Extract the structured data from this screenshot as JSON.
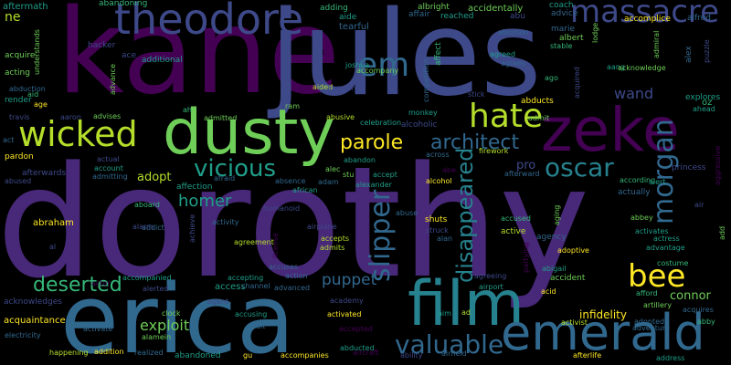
{
  "colors": {
    "background": "#000000",
    "palette": [
      "#440154",
      "#482878",
      "#3e4989",
      "#31688e",
      "#26828e",
      "#1f9e89",
      "#35b779",
      "#6ece58",
      "#b5de2b",
      "#fde725"
    ]
  },
  "words": [
    {
      "text": "dorothy",
      "color": "#482878",
      "rot": 0
    },
    {
      "text": "kane",
      "color": "#440154",
      "rot": 0
    },
    {
      "text": "jules",
      "color": "#3e4989",
      "rot": 0
    },
    {
      "text": "erica",
      "color": "#31688e",
      "rot": 0
    },
    {
      "text": "dusty",
      "color": "#6ece58",
      "rot": 0
    },
    {
      "text": "zeke",
      "color": "#440154",
      "rot": 0
    },
    {
      "text": "film",
      "color": "#26828e",
      "rot": 0
    },
    {
      "text": "emerald",
      "color": "#31688e",
      "rot": 0
    },
    {
      "text": "theodore",
      "color": "#3e4989",
      "rot": 0
    },
    {
      "text": "hate",
      "color": "#b5de2b",
      "rot": 0
    },
    {
      "text": "wicked",
      "color": "#b5de2b",
      "rot": 0
    },
    {
      "text": "em",
      "color": "#31688e",
      "rot": 0
    },
    {
      "text": "massacre",
      "color": "#3e4989",
      "rot": 0
    },
    {
      "text": "morgan",
      "color": "#31688e",
      "rot": 270
    },
    {
      "text": "bee",
      "color": "#fde725",
      "rot": 0
    },
    {
      "text": "slipper",
      "color": "#31688e",
      "rot": 270
    },
    {
      "text": "valuable",
      "color": "#31688e",
      "rot": 0
    },
    {
      "text": "oscar",
      "color": "#26828e",
      "rot": 0
    },
    {
      "text": "vicious",
      "color": "#1f9e89",
      "rot": 0
    },
    {
      "text": "architect",
      "color": "#31688e",
      "rot": 0
    },
    {
      "text": "disappeared",
      "color": "#26828e",
      "rot": 270
    },
    {
      "text": "parole",
      "color": "#fde725",
      "rot": 0
    },
    {
      "text": "deserted",
      "color": "#35b779",
      "rot": 0
    },
    {
      "text": "puppet",
      "color": "#31688e",
      "rot": 0
    },
    {
      "text": "homer",
      "color": "#1f9e89",
      "rot": 0
    },
    {
      "text": "exploit",
      "color": "#6ece58",
      "rot": 0
    },
    {
      "text": "adopt",
      "color": "#b5de2b",
      "rot": 0
    },
    {
      "text": "connor",
      "color": "#6ece58",
      "rot": 0
    },
    {
      "text": "wand",
      "color": "#3e4989",
      "rot": 0
    },
    {
      "text": "infidelity",
      "color": "#fde725",
      "rot": 0
    },
    {
      "text": "ne",
      "color": "#b5de2b",
      "rot": 0
    },
    {
      "text": "pro",
      "color": "#3e4989",
      "rot": 0
    },
    {
      "text": "access",
      "color": "#1f9e89",
      "rot": 0
    },
    {
      "text": "abraham",
      "color": "#fde725",
      "rot": 0
    },
    {
      "text": "aftermath",
      "color": "#1f9e89",
      "rot": 0
    },
    {
      "text": "abandoning",
      "color": "#35b779",
      "rot": 0
    },
    {
      "text": "hacker",
      "color": "#3e4989",
      "rot": 0
    },
    {
      "text": "ace",
      "color": "#3e4989",
      "rot": 0
    },
    {
      "text": "acquire",
      "color": "#6ece58",
      "rot": 0
    },
    {
      "text": "acting",
      "color": "#6ece58",
      "rot": 0
    },
    {
      "text": "additional",
      "color": "#1f9e89",
      "rot": 0
    },
    {
      "text": "adding",
      "color": "#35b779",
      "rot": 0
    },
    {
      "text": "aide",
      "color": "#1f9e89",
      "rot": 0
    },
    {
      "text": "tearful",
      "color": "#31688e",
      "rot": 0
    },
    {
      "text": "joshua",
      "color": "#1f9e89",
      "rot": 0
    },
    {
      "text": "accompany",
      "color": "#6ece58",
      "rot": 0
    },
    {
      "text": "affair",
      "color": "#31688e",
      "rot": 0
    },
    {
      "text": "affect",
      "color": "#35b779",
      "rot": 270
    },
    {
      "text": "albright",
      "color": "#6ece58",
      "rot": 0
    },
    {
      "text": "reached",
      "color": "#1f9e89",
      "rot": 0
    },
    {
      "text": "accidentally",
      "color": "#6ece58",
      "rot": 0
    },
    {
      "text": "abu",
      "color": "#3e4989",
      "rot": 0
    },
    {
      "text": "abortion",
      "color": "#31688e",
      "rot": 0
    },
    {
      "text": "agreed",
      "color": "#1f9e89",
      "rot": 0
    },
    {
      "text": "agrees",
      "color": "#31688e",
      "rot": 0
    },
    {
      "text": "coach",
      "color": "#1f9e89",
      "rot": 0
    },
    {
      "text": "advice",
      "color": "#31688e",
      "rot": 0
    },
    {
      "text": "marie",
      "color": "#31688e",
      "rot": 0
    },
    {
      "text": "albert",
      "color": "#6ece58",
      "rot": 0
    },
    {
      "text": "stable",
      "color": "#35b779",
      "rot": 0
    },
    {
      "text": "lodge",
      "color": "#6ece58",
      "rot": 270
    },
    {
      "text": "accomplice",
      "color": "#fde725",
      "rot": 0
    },
    {
      "text": "alfred",
      "color": "#31688e",
      "rot": 0
    },
    {
      "text": "admiral",
      "color": "#6ece58",
      "rot": 270
    },
    {
      "text": "puzzle",
      "color": "#3e4989",
      "rot": 270
    },
    {
      "text": "alex",
      "color": "#31688e",
      "rot": 270
    },
    {
      "text": "aang",
      "color": "#1f9e89",
      "rot": 0
    },
    {
      "text": "acknowledge",
      "color": "#6ece58",
      "rot": 0
    },
    {
      "text": "explores",
      "color": "#1f9e89",
      "rot": 0
    },
    {
      "text": "ahead",
      "color": "#1f9e89",
      "rot": 0
    },
    {
      "text": "oz",
      "color": "#35b779",
      "rot": 0
    },
    {
      "text": "abducts",
      "color": "#fde725",
      "rot": 0
    },
    {
      "text": "admit",
      "color": "#6ece58",
      "rot": 0
    },
    {
      "text": "acquired",
      "color": "#3e4989",
      "rot": 270
    },
    {
      "text": "ago",
      "color": "#35b779",
      "rot": 0
    },
    {
      "text": "stick",
      "color": "#3e4989",
      "rot": 0
    },
    {
      "text": "monkey",
      "color": "#1f9e89",
      "rot": 0
    },
    {
      "text": "alcoholic",
      "color": "#3e4989",
      "rot": 0
    },
    {
      "text": "competition",
      "color": "#31688e",
      "rot": 270
    },
    {
      "text": "understands",
      "color": "#6ece58",
      "rot": 270
    },
    {
      "text": "abduction",
      "color": "#31688e",
      "rot": 0
    },
    {
      "text": "aid",
      "color": "#35b779",
      "rot": 0
    },
    {
      "text": "age",
      "color": "#fde725",
      "rot": 0
    },
    {
      "text": "render",
      "color": "#1f9e89",
      "rot": 0
    },
    {
      "text": "travis",
      "color": "#3e4989",
      "rot": 0
    },
    {
      "text": "aaron",
      "color": "#3e4989",
      "rot": 0
    },
    {
      "text": "advises",
      "color": "#6ece58",
      "rot": 0
    },
    {
      "text": "advance",
      "color": "#6ece58",
      "rot": 270
    },
    {
      "text": "aided",
      "color": "#b5de2b",
      "rot": 0
    },
    {
      "text": "abruptly",
      "color": "#3e4989",
      "rot": 0
    },
    {
      "text": "act",
      "color": "#31688e",
      "rot": 0
    },
    {
      "text": "ah",
      "color": "#35b779",
      "rot": 0
    },
    {
      "text": "ram",
      "color": "#6ece58",
      "rot": 0
    },
    {
      "text": "admitted",
      "color": "#6ece58",
      "rot": 0
    },
    {
      "text": "abusive",
      "color": "#b5de2b",
      "rot": 0
    },
    {
      "text": "celebration",
      "color": "#1f9e89",
      "rot": 0
    },
    {
      "text": "abandon",
      "color": "#1f9e89",
      "rot": 0
    },
    {
      "text": "alec",
      "color": "#6ece58",
      "rot": 0
    },
    {
      "text": "stu",
      "color": "#6ece58",
      "rot": 0
    },
    {
      "text": "accept",
      "color": "#1f9e89",
      "rot": 0
    },
    {
      "text": "across",
      "color": "#31688e",
      "rot": 0
    },
    {
      "text": "alcohol",
      "color": "#fde725",
      "rot": 0
    },
    {
      "text": "abe",
      "color": "#440154",
      "rot": 0
    },
    {
      "text": "firework",
      "color": "#b5de2b",
      "rot": 0
    },
    {
      "text": "afterward",
      "color": "#31688e",
      "rot": 0
    },
    {
      "text": "according",
      "color": "#35b779",
      "rot": 0
    },
    {
      "text": "alert",
      "color": "#1f9e89",
      "rot": 0
    },
    {
      "text": "princess",
      "color": "#3e4989",
      "rot": 0
    },
    {
      "text": "aggressive",
      "color": "#440154",
      "rot": 270
    },
    {
      "text": "pardon",
      "color": "#fde725",
      "rot": 0
    },
    {
      "text": "afterwards",
      "color": "#3e4989",
      "rot": 0
    },
    {
      "text": "abused",
      "color": "#3e4989",
      "rot": 0
    },
    {
      "text": "actual",
      "color": "#3e4989",
      "rot": 0
    },
    {
      "text": "account",
      "color": "#1f9e89",
      "rot": 0
    },
    {
      "text": "admitting",
      "color": "#31688e",
      "rot": 0
    },
    {
      "text": "affection",
      "color": "#1f9e89",
      "rot": 0
    },
    {
      "text": "afraid",
      "color": "#31688e",
      "rot": 0
    },
    {
      "text": "absence",
      "color": "#31688e",
      "rot": 0
    },
    {
      "text": "african",
      "color": "#1f9e89",
      "rot": 0
    },
    {
      "text": "adam",
      "color": "#31688e",
      "rot": 0
    },
    {
      "text": "alexander",
      "color": "#1f9e89",
      "rot": 0
    },
    {
      "text": "actually",
      "color": "#31688e",
      "rot": 0
    },
    {
      "text": "air",
      "color": "#3e4989",
      "rot": 0
    },
    {
      "text": "abbey",
      "color": "#6ece58",
      "rot": 0
    },
    {
      "text": "add",
      "color": "#6ece58",
      "rot": 270
    },
    {
      "text": "aboard",
      "color": "#35b779",
      "rot": 0
    },
    {
      "text": "addict",
      "color": "#31688e",
      "rot": 0
    },
    {
      "text": "activity",
      "color": "#31688e",
      "rot": 0
    },
    {
      "text": "humanoid",
      "color": "#3e4989",
      "rot": 0
    },
    {
      "text": "airplane",
      "color": "#3e4989",
      "rot": 0
    },
    {
      "text": "abuse",
      "color": "#31688e",
      "rot": 0
    },
    {
      "text": "alan",
      "color": "#31688e",
      "rot": 0
    },
    {
      "text": "struck",
      "color": "#3e4989",
      "rot": 0
    },
    {
      "text": "shuts",
      "color": "#fde725",
      "rot": 0
    },
    {
      "text": "aging",
      "color": "#6ece58",
      "rot": 270
    },
    {
      "text": "accused",
      "color": "#35b779",
      "rot": 0
    },
    {
      "text": "active",
      "color": "#b5de2b",
      "rot": 0
    },
    {
      "text": "agency",
      "color": "#31688e",
      "rot": 0
    },
    {
      "text": "activates",
      "color": "#1f9e89",
      "rot": 0
    },
    {
      "text": "actress",
      "color": "#1f9e89",
      "rot": 0
    },
    {
      "text": "advantage",
      "color": "#1f9e89",
      "rot": 0
    },
    {
      "text": "adoptive",
      "color": "#fde725",
      "rot": 0
    },
    {
      "text": "abigail",
      "color": "#1f9e89",
      "rot": 0
    },
    {
      "text": "costume",
      "color": "#35b779",
      "rot": 0
    },
    {
      "text": "agreeing",
      "color": "#3e4989",
      "rot": 0
    },
    {
      "text": "partying",
      "color": "#440154",
      "rot": 270
    },
    {
      "text": "accident",
      "color": "#6ece58",
      "rot": 0
    },
    {
      "text": "afford",
      "color": "#35b779",
      "rot": 0
    },
    {
      "text": "alarm",
      "color": "#3e4989",
      "rot": 0
    },
    {
      "text": "al",
      "color": "#3e4989",
      "rot": 0
    },
    {
      "text": "achieve",
      "color": "#3e4989",
      "rot": 270
    },
    {
      "text": "agreement",
      "color": "#b5de2b",
      "rot": 0
    },
    {
      "text": "license",
      "color": "#440154",
      "rot": 270
    },
    {
      "text": "accepts",
      "color": "#b5de2b",
      "rot": 0
    },
    {
      "text": "admits",
      "color": "#b5de2b",
      "rot": 0
    },
    {
      "text": "airport",
      "color": "#1f9e89",
      "rot": 0
    },
    {
      "text": "accepting",
      "color": "#1f9e89",
      "rot": 0
    },
    {
      "text": "channel",
      "color": "#31688e",
      "rot": 0
    },
    {
      "text": "accuses",
      "color": "#31688e",
      "rot": 0
    },
    {
      "text": "action",
      "color": "#31688e",
      "rot": 0
    },
    {
      "text": "accompanied",
      "color": "#1f9e89",
      "rot": 0
    },
    {
      "text": "actor",
      "color": "#440154",
      "rot": 0
    },
    {
      "text": "alerted",
      "color": "#3e4989",
      "rot": 0
    },
    {
      "text": "agent",
      "color": "#3e4989",
      "rot": 0
    },
    {
      "text": "advanced",
      "color": "#31688e",
      "rot": 0
    },
    {
      "text": "academy",
      "color": "#3e4989",
      "rot": 0
    },
    {
      "text": "acid",
      "color": "#fde725",
      "rot": 0
    },
    {
      "text": "acknowledges",
      "color": "#3e4989",
      "rot": 0
    },
    {
      "text": "acquaintance",
      "color": "#fde725",
      "rot": 0
    },
    {
      "text": "electricity",
      "color": "#31688e",
      "rot": 0
    },
    {
      "text": "happening",
      "color": "#b5de2b",
      "rot": 0
    },
    {
      "text": "addition",
      "color": "#fde725",
      "rot": 0
    },
    {
      "text": "activate",
      "color": "#31688e",
      "rot": 0
    },
    {
      "text": "clock",
      "color": "#6ece58",
      "rot": 0
    },
    {
      "text": "alamein",
      "color": "#6ece58",
      "rot": 0
    },
    {
      "text": "realized",
      "color": "#31688e",
      "rot": 0
    },
    {
      "text": "abandoned",
      "color": "#1f9e89",
      "rot": 0
    },
    {
      "text": "accusing",
      "color": "#1f9e89",
      "rot": 0
    },
    {
      "text": "adult",
      "color": "#31688e",
      "rot": 0
    },
    {
      "text": "activated",
      "color": "#fde725",
      "rot": 0
    },
    {
      "text": "accepted",
      "color": "#440154",
      "rot": 0
    },
    {
      "text": "aircraft",
      "color": "#440154",
      "rot": 0
    },
    {
      "text": "abducted",
      "color": "#1f9e89",
      "rot": 0
    },
    {
      "text": "accompanies",
      "color": "#fde725",
      "rot": 0
    },
    {
      "text": "gu",
      "color": "#fde725",
      "rot": 0
    },
    {
      "text": "ability",
      "color": "#3e4989",
      "rot": 0
    },
    {
      "text": "airfield",
      "color": "#31688e",
      "rot": 0
    },
    {
      "text": "ad",
      "color": "#b5de2b",
      "rot": 0
    },
    {
      "text": "aim",
      "color": "#1f9e89",
      "rot": 0
    },
    {
      "text": "activist",
      "color": "#b5de2b",
      "rot": 0
    },
    {
      "text": "adopted",
      "color": "#31688e",
      "rot": 0
    },
    {
      "text": "artillery",
      "color": "#6ece58",
      "rot": 0
    },
    {
      "text": "adventure",
      "color": "#31688e",
      "rot": 0
    },
    {
      "text": "acquires",
      "color": "#31688e",
      "rot": 0
    },
    {
      "text": "abby",
      "color": "#35b779",
      "rot": 0
    },
    {
      "text": "afterlife",
      "color": "#fde725",
      "rot": 0
    },
    {
      "text": "address",
      "color": "#1f9e89",
      "rot": 0
    }
  ]
}
